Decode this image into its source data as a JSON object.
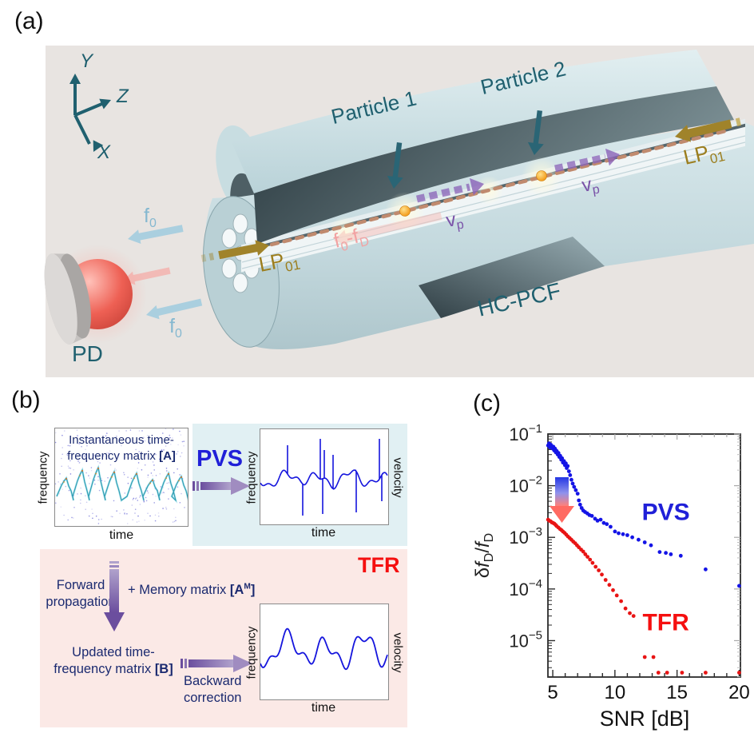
{
  "colors": {
    "panel_bg": "#e8e4e1",
    "teal": "#20606f",
    "gold": "#9c7e1e",
    "pink_text": "#f2a2a2",
    "blue_arrow_text": "#85b8d0",
    "purple": "#7a52a8",
    "navy": "#1b2a70",
    "pvs_blue": "#2020d8",
    "tfr_red": "#f50f0f",
    "cyan_bg": "#e1f0f3",
    "pink_bg": "#fbe9e6",
    "beam": "#c08a6e",
    "particle_orange": "#f08c00",
    "pd_red": "#ee6054",
    "dot_blue": "#1414e6",
    "dot_red": "#e81414"
  },
  "panel_a": {
    "label": "(a)",
    "axis_x": "X",
    "axis_y": "Y",
    "axis_z": "Z",
    "particle1": "Particle 1",
    "particle2": "Particle 2",
    "lp": "LP",
    "lp_sub": "01",
    "f0": "f",
    "f0_sub": "0",
    "fd_f": "f",
    "fd_sub0": "0",
    "fd_dash": "-f",
    "fd_subD": "D",
    "vp": "v",
    "vp_sub": "p",
    "pd": "PD",
    "fiber": "HC-PCF"
  },
  "panel_b": {
    "label": "(b)",
    "matrix_a_line1": "Instantaneous time-",
    "matrix_a_line2": "frequency matrix ",
    "matrix_a_bold": "[A]",
    "freq": "frequency",
    "time": "time",
    "velocity": "velocity",
    "pvs": "PVS",
    "tfr": "TFR",
    "forward_line1": "Forward",
    "forward_line2": "propagation",
    "memory_prefix": "+ Memory matrix ",
    "memory_bold_open": "[A",
    "memory_sup": "M",
    "memory_bold_close": "]",
    "updated_line1": "Updated time-",
    "updated_line2": "frequency matrix ",
    "updated_bold": "[B]",
    "backward_line1": "Backward",
    "backward_line2": "correction"
  },
  "panel_c": {
    "label": "(c)",
    "y_delta": "δ",
    "y_f1": "f",
    "y_sub1": "D",
    "y_slash": "/",
    "y_f2": "f",
    "y_sub2": "D"
  },
  "chart_data": {
    "type": "scatter",
    "title": "",
    "xlabel": "SNR [dB]",
    "ylabel": "δf_D/f_D",
    "x_ticks": [
      5,
      10,
      15,
      20
    ],
    "x_minor_step": 1,
    "y_tick_exponents": [
      -1,
      -2,
      -3,
      -4,
      -5
    ],
    "x_range": [
      4.61,
      20.1
    ],
    "y_log_range": [
      -1,
      -5.705
    ],
    "grid": false,
    "legend_position": "inline-labels",
    "series": [
      {
        "name": "PVS",
        "color": "#1414e6",
        "label_pos": [
          14.1,
          0.00215
        ],
        "points": [
          [
            4.62,
            0.06
          ],
          [
            4.7,
            0.066
          ],
          [
            4.78,
            0.055
          ],
          [
            4.85,
            0.062
          ],
          [
            4.92,
            0.058
          ],
          [
            5.0,
            0.052
          ],
          [
            5.05,
            0.057
          ],
          [
            5.12,
            0.048
          ],
          [
            5.18,
            0.052
          ],
          [
            5.25,
            0.044
          ],
          [
            5.32,
            0.047
          ],
          [
            5.4,
            0.04
          ],
          [
            5.46,
            0.043
          ],
          [
            5.53,
            0.036
          ],
          [
            5.6,
            0.038
          ],
          [
            5.68,
            0.032
          ],
          [
            5.75,
            0.034
          ],
          [
            5.82,
            0.028
          ],
          [
            5.9,
            0.03
          ],
          [
            5.98,
            0.025
          ],
          [
            6.05,
            0.027
          ],
          [
            6.12,
            0.022
          ],
          [
            6.2,
            0.024
          ],
          [
            6.3,
            0.019
          ],
          [
            6.4,
            0.016
          ],
          [
            6.5,
            0.013
          ],
          [
            6.6,
            0.011
          ],
          [
            6.72,
            0.0095
          ],
          [
            6.85,
            0.0082
          ],
          [
            7.0,
            0.007
          ],
          [
            7.1,
            0.0052
          ],
          [
            7.2,
            0.0043
          ],
          [
            7.32,
            0.0037
          ],
          [
            7.45,
            0.0033
          ],
          [
            7.6,
            0.0031
          ],
          [
            7.78,
            0.0029
          ],
          [
            7.95,
            0.0027
          ],
          [
            8.15,
            0.0026
          ],
          [
            8.4,
            0.0023
          ],
          [
            8.6,
            0.0021
          ],
          [
            8.85,
            0.0022
          ],
          [
            9.1,
            0.0019
          ],
          [
            9.35,
            0.0018
          ],
          [
            9.65,
            0.0016
          ],
          [
            10.0,
            0.0013
          ],
          [
            10.3,
            0.0012
          ],
          [
            10.65,
            0.00115
          ],
          [
            11.0,
            0.0011
          ],
          [
            11.4,
            0.001
          ],
          [
            11.9,
            0.0009
          ],
          [
            12.4,
            0.0008
          ],
          [
            12.9,
            0.0007
          ],
          [
            13.6,
            0.00052
          ],
          [
            14.1,
            0.0005
          ],
          [
            14.5,
            0.00047
          ],
          [
            15.3,
            0.00044
          ],
          [
            17.3,
            0.00024
          ],
          [
            20.0,
            0.000115
          ]
        ]
      },
      {
        "name": "TFR",
        "color": "#e81414",
        "label_pos": [
          14.1,
          1.6e-05
        ],
        "points": [
          [
            4.62,
            0.0022
          ],
          [
            4.72,
            0.0021
          ],
          [
            4.82,
            0.00205
          ],
          [
            4.92,
            0.00195
          ],
          [
            5.02,
            0.0019
          ],
          [
            5.12,
            0.00185
          ],
          [
            5.22,
            0.00175
          ],
          [
            5.32,
            0.00165
          ],
          [
            5.45,
            0.00155
          ],
          [
            5.58,
            0.00145
          ],
          [
            5.7,
            0.00138
          ],
          [
            5.82,
            0.0013
          ],
          [
            5.95,
            0.00122
          ],
          [
            6.08,
            0.00113
          ],
          [
            6.22,
            0.00104
          ],
          [
            6.36,
            0.00097
          ],
          [
            6.5,
            0.0009
          ],
          [
            6.65,
            0.00083
          ],
          [
            6.8,
            0.00077
          ],
          [
            6.95,
            0.0007
          ],
          [
            7.1,
            0.00064
          ],
          [
            7.28,
            0.00058
          ],
          [
            7.45,
            0.00053
          ],
          [
            7.62,
            0.00047
          ],
          [
            7.8,
            0.00042
          ],
          [
            8.0,
            0.00037
          ],
          [
            8.2,
            0.00032
          ],
          [
            8.45,
            0.00027
          ],
          [
            8.7,
            0.00023
          ],
          [
            8.95,
            0.00019
          ],
          [
            9.25,
            0.00015
          ],
          [
            9.55,
            0.00012
          ],
          [
            9.85,
            9.5e-05
          ],
          [
            10.15,
            7.5e-05
          ],
          [
            10.5,
            5.8e-05
          ],
          [
            10.85,
            4.2e-05
          ],
          [
            11.2,
            3.4e-05
          ],
          [
            11.5,
            3e-05
          ],
          [
            12.4,
            4.8e-06
          ],
          [
            13.1,
            4.8e-06
          ],
          [
            13.5,
            2.4e-06
          ],
          [
            14.2,
            2.4e-06
          ],
          [
            15.4,
            2.4e-06
          ],
          [
            17.3,
            2.4e-06
          ],
          [
            20.0,
            2.4e-06
          ]
        ]
      }
    ]
  }
}
